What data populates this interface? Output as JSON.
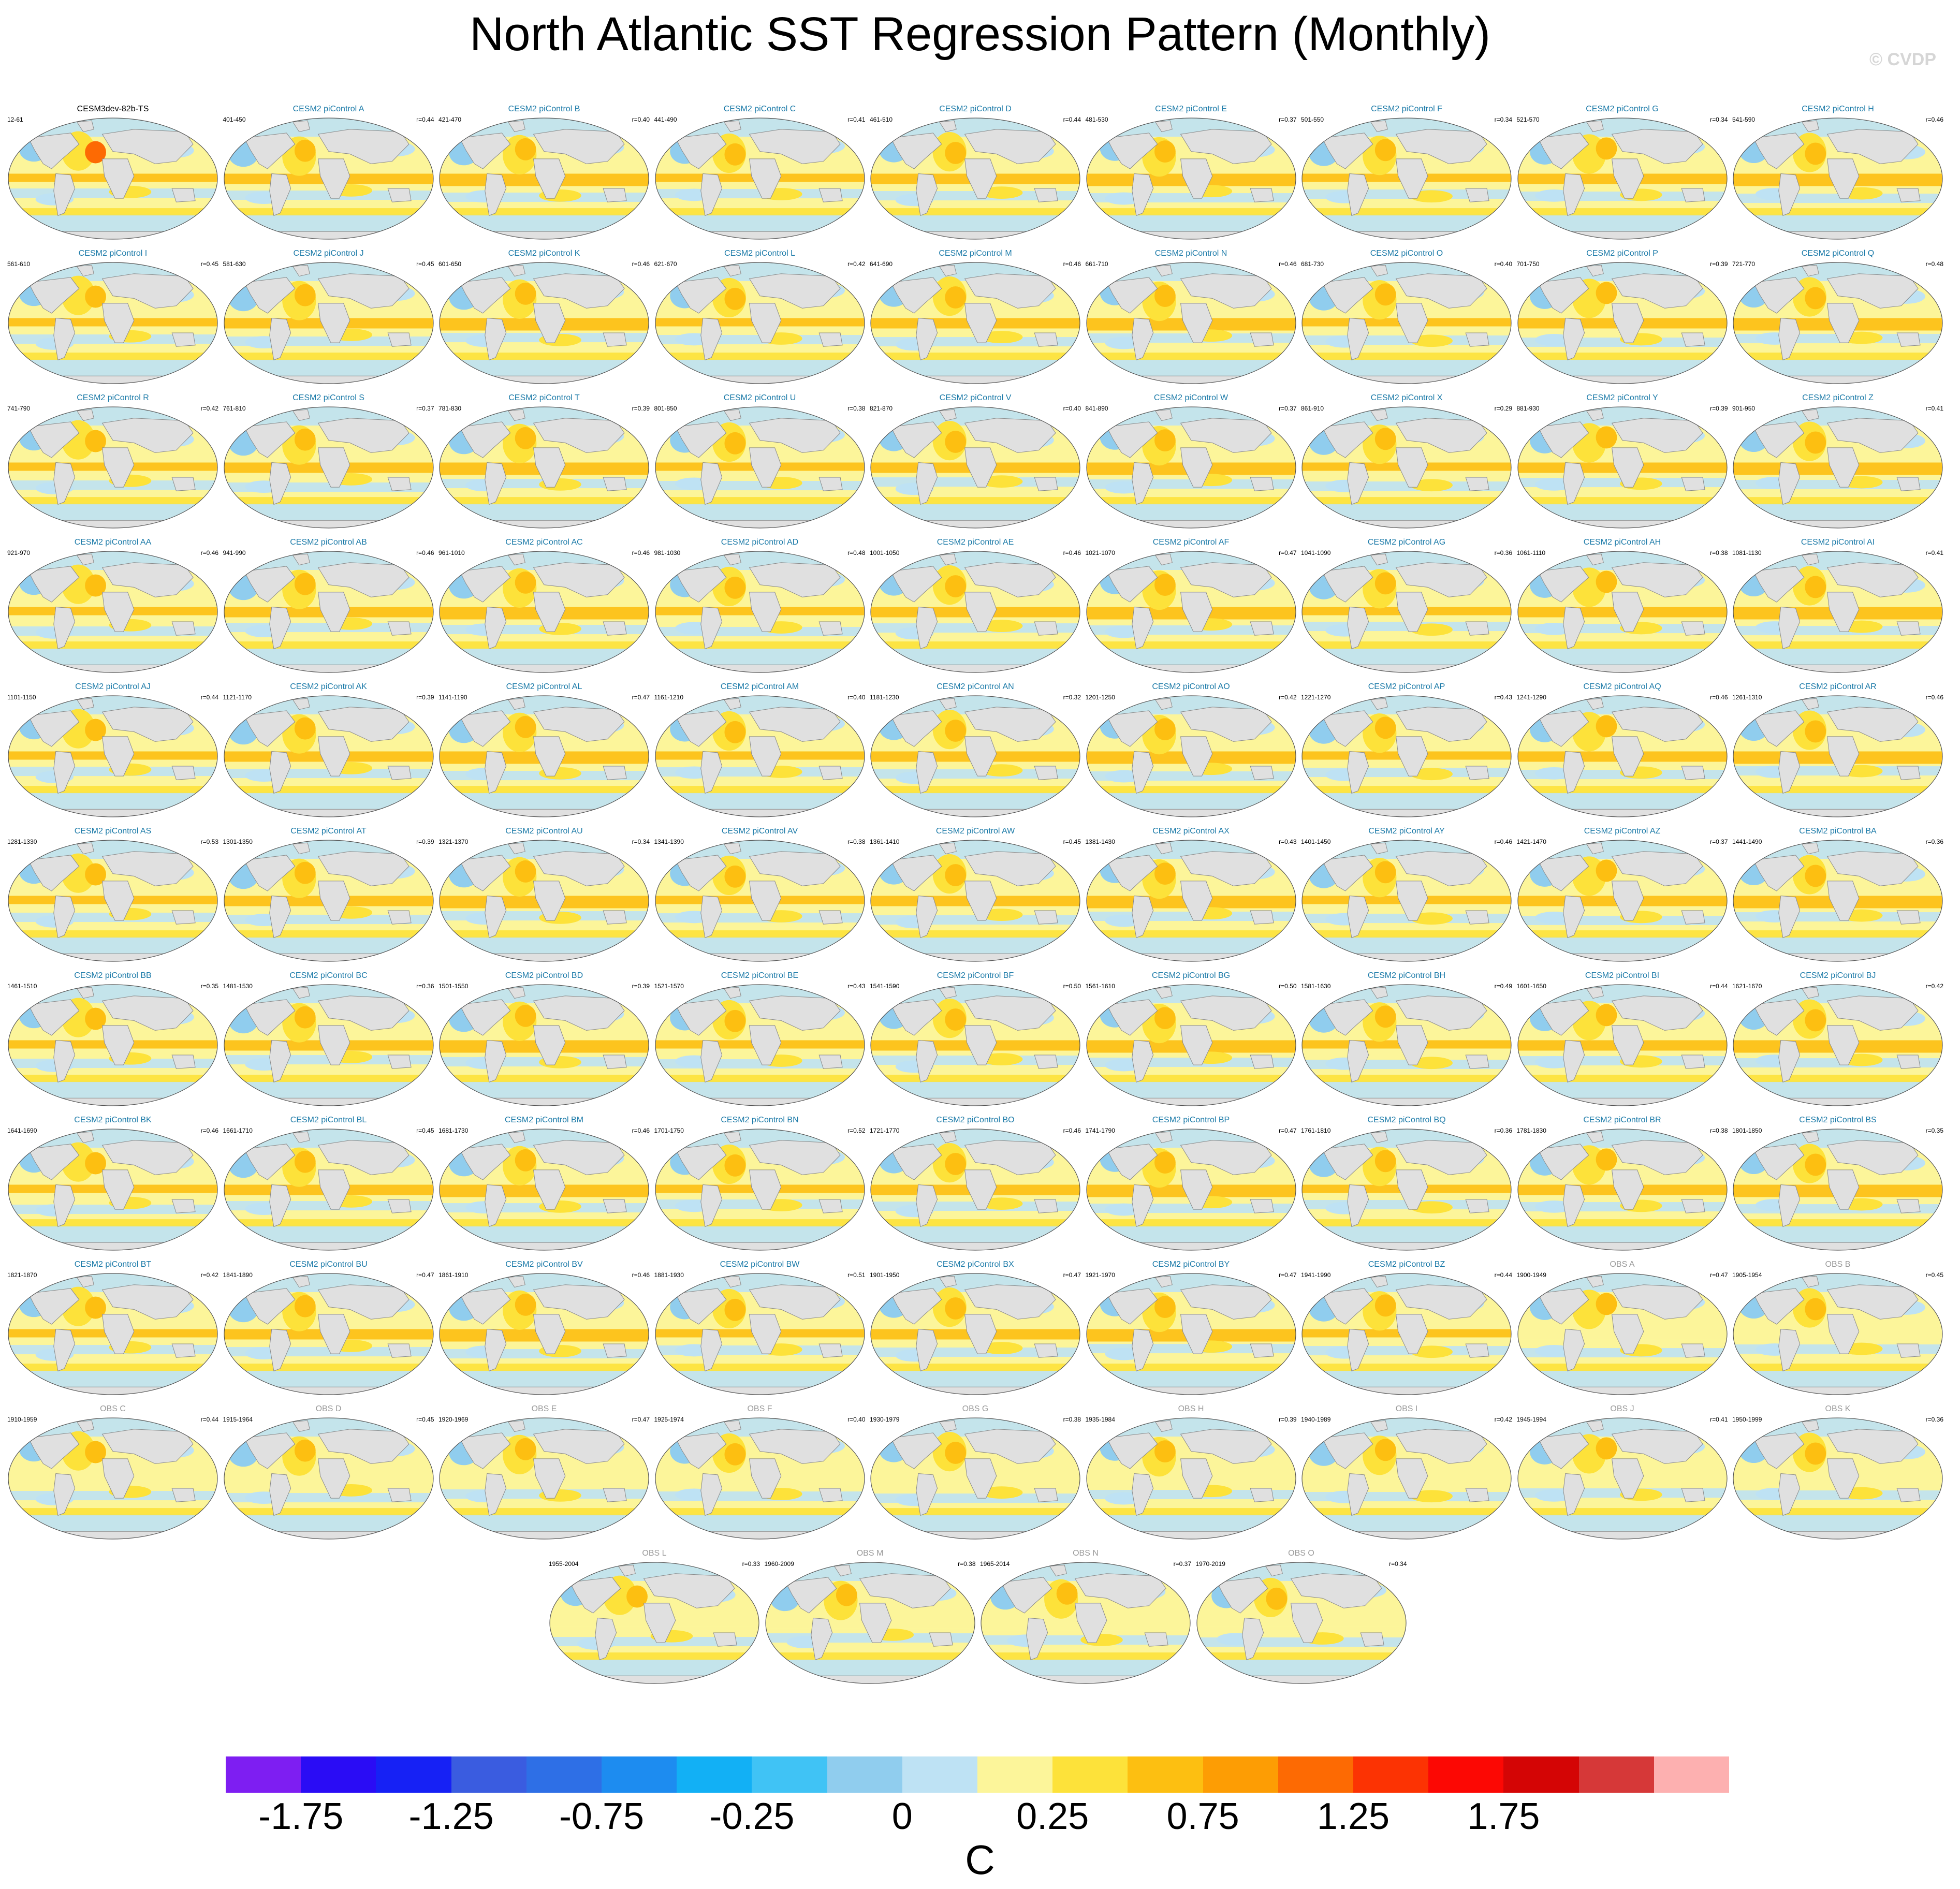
{
  "title": "North Atlantic SST Regression Pattern (Monthly)",
  "watermark": "© CVDP",
  "chart_data": {
    "type": "heatmap",
    "title": "North Atlantic SST Regression Pattern (Monthly)",
    "units": "C",
    "projection": "global map grid",
    "colorbar": {
      "levels": [
        -1.75,
        -1.5,
        -1.25,
        -1.0,
        -0.75,
        -0.5,
        -0.25,
        -0.1,
        0,
        0.1,
        0.25,
        0.5,
        0.75,
        1.0,
        1.25,
        1.5,
        1.75,
        2.0,
        2.25
      ],
      "tick_labels": [
        "-1.75",
        "-1.25",
        "-0.75",
        "-0.25",
        "0",
        "0.25",
        "0.75",
        "1.25",
        "1.75"
      ],
      "colors": [
        "#7e1ef2",
        "#2a0cf5",
        "#1621f5",
        "#3a5ce0",
        "#2e6fe6",
        "#1d8cf0",
        "#12b0f5",
        "#40c3f5",
        "#90cdee",
        "#bee2f4",
        "#fcf59a",
        "#fde23a",
        "#fdbf11",
        "#fd9d04",
        "#fd6a03",
        "#fc3303",
        "#fc0804",
        "#d40505",
        "#d63838",
        "#fdb0b0"
      ]
    },
    "series": [
      {
        "title": "CESM3dev-82b-TS",
        "left": "12-61",
        "right": ""
      },
      {
        "title": "CESM2 piControl A",
        "left": "401-450",
        "right": "r=0.44"
      },
      {
        "title": "CESM2 piControl B",
        "left": "421-470",
        "right": "r=0.40"
      },
      {
        "title": "CESM2 piControl C",
        "left": "441-490",
        "right": "r=0.41"
      },
      {
        "title": "CESM2 piControl D",
        "left": "461-510",
        "right": "r=0.44"
      },
      {
        "title": "CESM2 piControl E",
        "left": "481-530",
        "right": "r=0.37"
      },
      {
        "title": "CESM2 piControl F",
        "left": "501-550",
        "right": "r=0.34"
      },
      {
        "title": "CESM2 piControl G",
        "left": "521-570",
        "right": "r=0.34"
      },
      {
        "title": "CESM2 piControl H",
        "left": "541-590",
        "right": "r=0.46"
      },
      {
        "title": "CESM2 piControl I",
        "left": "561-610",
        "right": "r=0.45"
      },
      {
        "title": "CESM2 piControl J",
        "left": "581-630",
        "right": "r=0.45"
      },
      {
        "title": "CESM2 piControl K",
        "left": "601-650",
        "right": "r=0.46"
      },
      {
        "title": "CESM2 piControl L",
        "left": "621-670",
        "right": "r=0.42"
      },
      {
        "title": "CESM2 piControl M",
        "left": "641-690",
        "right": "r=0.46"
      },
      {
        "title": "CESM2 piControl N",
        "left": "661-710",
        "right": "r=0.46"
      },
      {
        "title": "CESM2 piControl O",
        "left": "681-730",
        "right": "r=0.40"
      },
      {
        "title": "CESM2 piControl P",
        "left": "701-750",
        "right": "r=0.39"
      },
      {
        "title": "CESM2 piControl Q",
        "left": "721-770",
        "right": "r=0.48"
      },
      {
        "title": "CESM2 piControl R",
        "left": "741-790",
        "right": "r=0.42"
      },
      {
        "title": "CESM2 piControl S",
        "left": "761-810",
        "right": "r=0.37"
      },
      {
        "title": "CESM2 piControl T",
        "left": "781-830",
        "right": "r=0.39"
      },
      {
        "title": "CESM2 piControl U",
        "left": "801-850",
        "right": "r=0.38"
      },
      {
        "title": "CESM2 piControl V",
        "left": "821-870",
        "right": "r=0.40"
      },
      {
        "title": "CESM2 piControl W",
        "left": "841-890",
        "right": "r=0.37"
      },
      {
        "title": "CESM2 piControl X",
        "left": "861-910",
        "right": "r=0.29"
      },
      {
        "title": "CESM2 piControl Y",
        "left": "881-930",
        "right": "r=0.39"
      },
      {
        "title": "CESM2 piControl Z",
        "left": "901-950",
        "right": "r=0.41"
      },
      {
        "title": "CESM2 piControl AA",
        "left": "921-970",
        "right": "r=0.46"
      },
      {
        "title": "CESM2 piControl AB",
        "left": "941-990",
        "right": "r=0.46"
      },
      {
        "title": "CESM2 piControl AC",
        "left": "961-1010",
        "right": "r=0.46"
      },
      {
        "title": "CESM2 piControl AD",
        "left": "981-1030",
        "right": "r=0.48"
      },
      {
        "title": "CESM2 piControl AE",
        "left": "1001-1050",
        "right": "r=0.46"
      },
      {
        "title": "CESM2 piControl AF",
        "left": "1021-1070",
        "right": "r=0.47"
      },
      {
        "title": "CESM2 piControl AG",
        "left": "1041-1090",
        "right": "r=0.36"
      },
      {
        "title": "CESM2 piControl AH",
        "left": "1061-1110",
        "right": "r=0.38"
      },
      {
        "title": "CESM2 piControl AI",
        "left": "1081-1130",
        "right": "r=0.41"
      },
      {
        "title": "CESM2 piControl AJ",
        "left": "1101-1150",
        "right": "r=0.44"
      },
      {
        "title": "CESM2 piControl AK",
        "left": "1121-1170",
        "right": "r=0.39"
      },
      {
        "title": "CESM2 piControl AL",
        "left": "1141-1190",
        "right": "r=0.47"
      },
      {
        "title": "CESM2 piControl AM",
        "left": "1161-1210",
        "right": "r=0.40"
      },
      {
        "title": "CESM2 piControl AN",
        "left": "1181-1230",
        "right": "r=0.32"
      },
      {
        "title": "CESM2 piControl AO",
        "left": "1201-1250",
        "right": "r=0.42"
      },
      {
        "title": "CESM2 piControl AP",
        "left": "1221-1270",
        "right": "r=0.43"
      },
      {
        "title": "CESM2 piControl AQ",
        "left": "1241-1290",
        "right": "r=0.46"
      },
      {
        "title": "CESM2 piControl AR",
        "left": "1261-1310",
        "right": "r=0.46"
      },
      {
        "title": "CESM2 piControl AS",
        "left": "1281-1330",
        "right": "r=0.53"
      },
      {
        "title": "CESM2 piControl AT",
        "left": "1301-1350",
        "right": "r=0.39"
      },
      {
        "title": "CESM2 piControl AU",
        "left": "1321-1370",
        "right": "r=0.34"
      },
      {
        "title": "CESM2 piControl AV",
        "left": "1341-1390",
        "right": "r=0.38"
      },
      {
        "title": "CESM2 piControl AW",
        "left": "1361-1410",
        "right": "r=0.45"
      },
      {
        "title": "CESM2 piControl AX",
        "left": "1381-1430",
        "right": "r=0.43"
      },
      {
        "title": "CESM2 piControl AY",
        "left": "1401-1450",
        "right": "r=0.46"
      },
      {
        "title": "CESM2 piControl AZ",
        "left": "1421-1470",
        "right": "r=0.37"
      },
      {
        "title": "CESM2 piControl BA",
        "left": "1441-1490",
        "right": "r=0.36"
      },
      {
        "title": "CESM2 piControl BB",
        "left": "1461-1510",
        "right": "r=0.35"
      },
      {
        "title": "CESM2 piControl BC",
        "left": "1481-1530",
        "right": "r=0.36"
      },
      {
        "title": "CESM2 piControl BD",
        "left": "1501-1550",
        "right": "r=0.39"
      },
      {
        "title": "CESM2 piControl BE",
        "left": "1521-1570",
        "right": "r=0.43"
      },
      {
        "title": "CESM2 piControl BF",
        "left": "1541-1590",
        "right": "r=0.50"
      },
      {
        "title": "CESM2 piControl BG",
        "left": "1561-1610",
        "right": "r=0.50"
      },
      {
        "title": "CESM2 piControl BH",
        "left": "1581-1630",
        "right": "r=0.49"
      },
      {
        "title": "CESM2 piControl BI",
        "left": "1601-1650",
        "right": "r=0.44"
      },
      {
        "title": "CESM2 piControl BJ",
        "left": "1621-1670",
        "right": "r=0.42"
      },
      {
        "title": "CESM2 piControl BK",
        "left": "1641-1690",
        "right": "r=0.46"
      },
      {
        "title": "CESM2 piControl BL",
        "left": "1661-1710",
        "right": "r=0.45"
      },
      {
        "title": "CESM2 piControl BM",
        "left": "1681-1730",
        "right": "r=0.46"
      },
      {
        "title": "CESM2 piControl BN",
        "left": "1701-1750",
        "right": "r=0.52"
      },
      {
        "title": "CESM2 piControl BO",
        "left": "1721-1770",
        "right": "r=0.46"
      },
      {
        "title": "CESM2 piControl BP",
        "left": "1741-1790",
        "right": "r=0.47"
      },
      {
        "title": "CESM2 piControl BQ",
        "left": "1761-1810",
        "right": "r=0.36"
      },
      {
        "title": "CESM2 piControl BR",
        "left": "1781-1830",
        "right": "r=0.38"
      },
      {
        "title": "CESM2 piControl BS",
        "left": "1801-1850",
        "right": "r=0.35"
      },
      {
        "title": "CESM2 piControl BT",
        "left": "1821-1870",
        "right": "r=0.42"
      },
      {
        "title": "CESM2 piControl BU",
        "left": "1841-1890",
        "right": "r=0.47"
      },
      {
        "title": "CESM2 piControl BV",
        "left": "1861-1910",
        "right": "r=0.46"
      },
      {
        "title": "CESM2 piControl BW",
        "left": "1881-1930",
        "right": "r=0.51"
      },
      {
        "title": "CESM2 piControl BX",
        "left": "1901-1950",
        "right": "r=0.47"
      },
      {
        "title": "CESM2 piControl BY",
        "left": "1921-1970",
        "right": "r=0.47"
      },
      {
        "title": "CESM2 piControl BZ",
        "left": "1941-1990",
        "right": "r=0.44"
      },
      {
        "title": "OBS A",
        "left": "1900-1949",
        "right": "r=0.47"
      },
      {
        "title": "OBS B",
        "left": "1905-1954",
        "right": "r=0.45"
      },
      {
        "title": "OBS C",
        "left": "1910-1959",
        "right": "r=0.44"
      },
      {
        "title": "OBS D",
        "left": "1915-1964",
        "right": "r=0.45"
      },
      {
        "title": "OBS E",
        "left": "1920-1969",
        "right": "r=0.47"
      },
      {
        "title": "OBS F",
        "left": "1925-1974",
        "right": "r=0.40"
      },
      {
        "title": "OBS G",
        "left": "1930-1979",
        "right": "r=0.38"
      },
      {
        "title": "OBS H",
        "left": "1935-1984",
        "right": "r=0.39"
      },
      {
        "title": "OBS I",
        "left": "1940-1989",
        "right": "r=0.42"
      },
      {
        "title": "OBS J",
        "left": "1945-1994",
        "right": "r=0.41"
      },
      {
        "title": "OBS K",
        "left": "1950-1999",
        "right": "r=0.36"
      },
      {
        "title": "OBS L",
        "left": "1955-2004",
        "right": "r=0.33"
      },
      {
        "title": "OBS M",
        "left": "1960-2009",
        "right": "r=0.38"
      },
      {
        "title": "OBS N",
        "left": "1965-2014",
        "right": "r=0.37"
      },
      {
        "title": "OBS O",
        "left": "1970-2019",
        "right": "r=0.34"
      }
    ]
  },
  "colors": {
    "model_title": "#1b7aa8",
    "obs_title": "#9a9a9a",
    "ref_title": "#000000",
    "land": "#e0e0e0",
    "ocean_warm": "#fde23a",
    "ocean_cool": "#bee2f4"
  }
}
